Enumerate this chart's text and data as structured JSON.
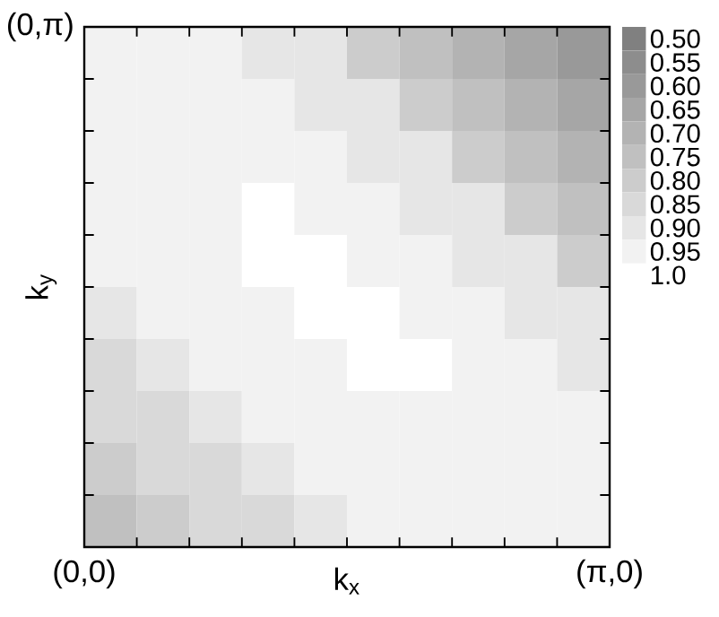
{
  "chart_data": {
    "type": "heatmap",
    "xlabel": "k$_{x}$",
    "ylabel": "k$_{y}$",
    "categories": [
      null,
      null,
      null,
      null,
      null,
      null,
      null,
      null,
      null,
      null
    ],
    "y_categories": [
      null,
      null,
      null,
      null,
      null,
      null,
      null,
      null,
      null,
      null
    ],
    "cells": [
      [
        0.95,
        0.95,
        0.95,
        0.9,
        0.9,
        0.8,
        0.75,
        0.7,
        0.65,
        0.6
      ],
      [
        0.95,
        0.95,
        0.95,
        0.95,
        0.9,
        0.9,
        0.8,
        0.75,
        0.7,
        0.65
      ],
      [
        0.95,
        0.95,
        0.95,
        0.95,
        0.95,
        0.9,
        0.9,
        0.8,
        0.75,
        0.7
      ],
      [
        0.95,
        0.95,
        0.95,
        1.0,
        0.95,
        0.95,
        0.9,
        0.9,
        0.8,
        0.75
      ],
      [
        0.95,
        0.95,
        0.95,
        1.0,
        1.0,
        0.95,
        0.95,
        0.9,
        0.9,
        0.8
      ],
      [
        0.9,
        0.95,
        0.95,
        0.95,
        1.0,
        1.0,
        0.95,
        0.95,
        0.9,
        0.9
      ],
      [
        0.85,
        0.9,
        0.95,
        0.95,
        0.95,
        1.0,
        1.0,
        0.95,
        0.95,
        0.9
      ],
      [
        0.85,
        0.85,
        0.9,
        0.95,
        0.95,
        0.95,
        0.95,
        0.95,
        0.95,
        0.95
      ],
      [
        0.8,
        0.85,
        0.85,
        0.9,
        0.95,
        0.95,
        0.95,
        0.95,
        0.95,
        0.95
      ],
      [
        0.75,
        0.8,
        0.85,
        0.85,
        0.9,
        0.95,
        0.95,
        0.95,
        0.95,
        0.95
      ]
    ],
    "annotations": [
      "(0,0)",
      "(π,0)",
      "(0,π)"
    ],
    "clim": [
      0.475,
      1.025
    ],
    "cticks": [
      {
        "value": 0.5,
        "label": "0.50"
      },
      {
        "value": 0.55,
        "label": "0.55"
      },
      {
        "value": 0.6,
        "label": "0.60"
      },
      {
        "value": 0.65,
        "label": "0.65"
      },
      {
        "value": 0.7,
        "label": "0.70"
      },
      {
        "value": 0.75,
        "label": "0.75"
      },
      {
        "value": 0.8,
        "label": "0.80"
      },
      {
        "value": 0.85,
        "label": "0.85"
      },
      {
        "value": 0.9,
        "label": "0.90"
      },
      {
        "value": 0.95,
        "label": "0.95"
      },
      {
        "value": 1.0,
        "label": "1.0"
      }
    ]
  }
}
